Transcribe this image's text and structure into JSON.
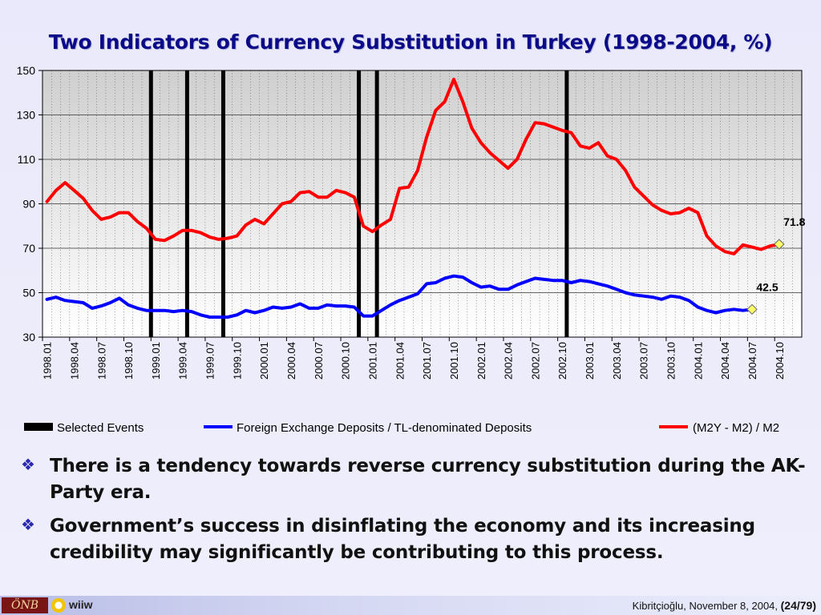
{
  "slide": {
    "title": "Two Indicators of Currency Substitution in Turkey (1998-2004, %)",
    "bullets": [
      "There is a tendency towards reverse currency substitution during the AK-Party era.",
      "Government’s success in disinflating the economy and its increasing credibility may significantly be contributing to this process."
    ],
    "bullet_glyph": "❖",
    "footer": {
      "logo_text": "ÖNB",
      "brand": "wiiw",
      "credit": "Kibritçioğlu, November 8, 2004, ",
      "page": "(24/79)"
    }
  },
  "chart_data": {
    "type": "line",
    "title": "",
    "ylim": [
      30,
      150
    ],
    "yticks": [
      30,
      50,
      70,
      90,
      110,
      130,
      150
    ],
    "x_tick_labels": [
      "1998.01",
      "1998.04",
      "1998.07",
      "1998.10",
      "1999.01",
      "1999.04",
      "1999.07",
      "1999.10",
      "2000.01",
      "2000.04",
      "2000.07",
      "2000.10",
      "2001.01",
      "2001.04",
      "2001.07",
      "2001.10",
      "2002.01",
      "2002.04",
      "2002.07",
      "2002.10",
      "2003.01",
      "2003.04",
      "2003.07",
      "2003.10",
      "2004.01",
      "2004.04",
      "2004.07",
      "2004.10"
    ],
    "x_start": "1998.01",
    "n_months": 84,
    "grid": true,
    "legend_position": "bottom",
    "selected_events": [
      "1999.01",
      "1999.05",
      "1999.09",
      "2000.12",
      "2001.02",
      "2002.11"
    ],
    "series": [
      {
        "name": "(M2Y - M2) / M2",
        "color": "#ff0000",
        "values": [
          91,
          96,
          99.5,
          96,
          92.5,
          87,
          83,
          84,
          86,
          86,
          82,
          79,
          74,
          73.5,
          75.5,
          78,
          78,
          77,
          75,
          74,
          74.5,
          75.5,
          80.5,
          83,
          81,
          85.5,
          90,
          91,
          95,
          95.5,
          93,
          93,
          96,
          95,
          93,
          80,
          77.5,
          80.5,
          83,
          97,
          97.5,
          105,
          120,
          132,
          136,
          146,
          136,
          124,
          117.5,
          113,
          109.5,
          106,
          110,
          119,
          126.5,
          126,
          124.5,
          123,
          122,
          116,
          115,
          117.5,
          111.5,
          110,
          105,
          97.5,
          93.5,
          89.5,
          87,
          85.5,
          86,
          88,
          86,
          75.5,
          71,
          68.5,
          67.5,
          71.5,
          70.5,
          69.5,
          71,
          71.8
        ],
        "end_label": "71.8"
      },
      {
        "name": "Foreign Exchange Deposits / TL-denominated Deposits",
        "color": "#0000ff",
        "values": [
          47,
          48,
          46.5,
          46,
          45.5,
          43,
          44,
          45.5,
          47.5,
          44.5,
          43,
          42,
          42,
          42,
          41.5,
          42,
          41.5,
          40,
          39,
          39,
          39,
          40,
          42,
          41,
          42,
          43.5,
          43,
          43.5,
          45,
          43,
          43,
          44.5,
          44,
          44,
          43.5,
          39.5,
          39.5,
          42,
          44.5,
          46.5,
          48,
          49.5,
          54,
          54.5,
          56.5,
          57.5,
          57,
          54.5,
          52.5,
          53,
          51.5,
          51.5,
          53.5,
          55,
          56.5,
          56,
          55.5,
          55.5,
          54.5,
          55.5,
          55,
          54,
          53,
          51.5,
          50,
          49,
          48.5,
          48,
          47,
          48.5,
          48,
          46.5,
          43.5,
          42,
          41,
          42,
          42.5,
          42,
          42.5
        ],
        "end_label": "42.5"
      }
    ],
    "legend": [
      "Selected Events",
      "Foreign Exchange Deposits / TL-denominated Deposits",
      "(M2Y - M2) / M2"
    ]
  }
}
